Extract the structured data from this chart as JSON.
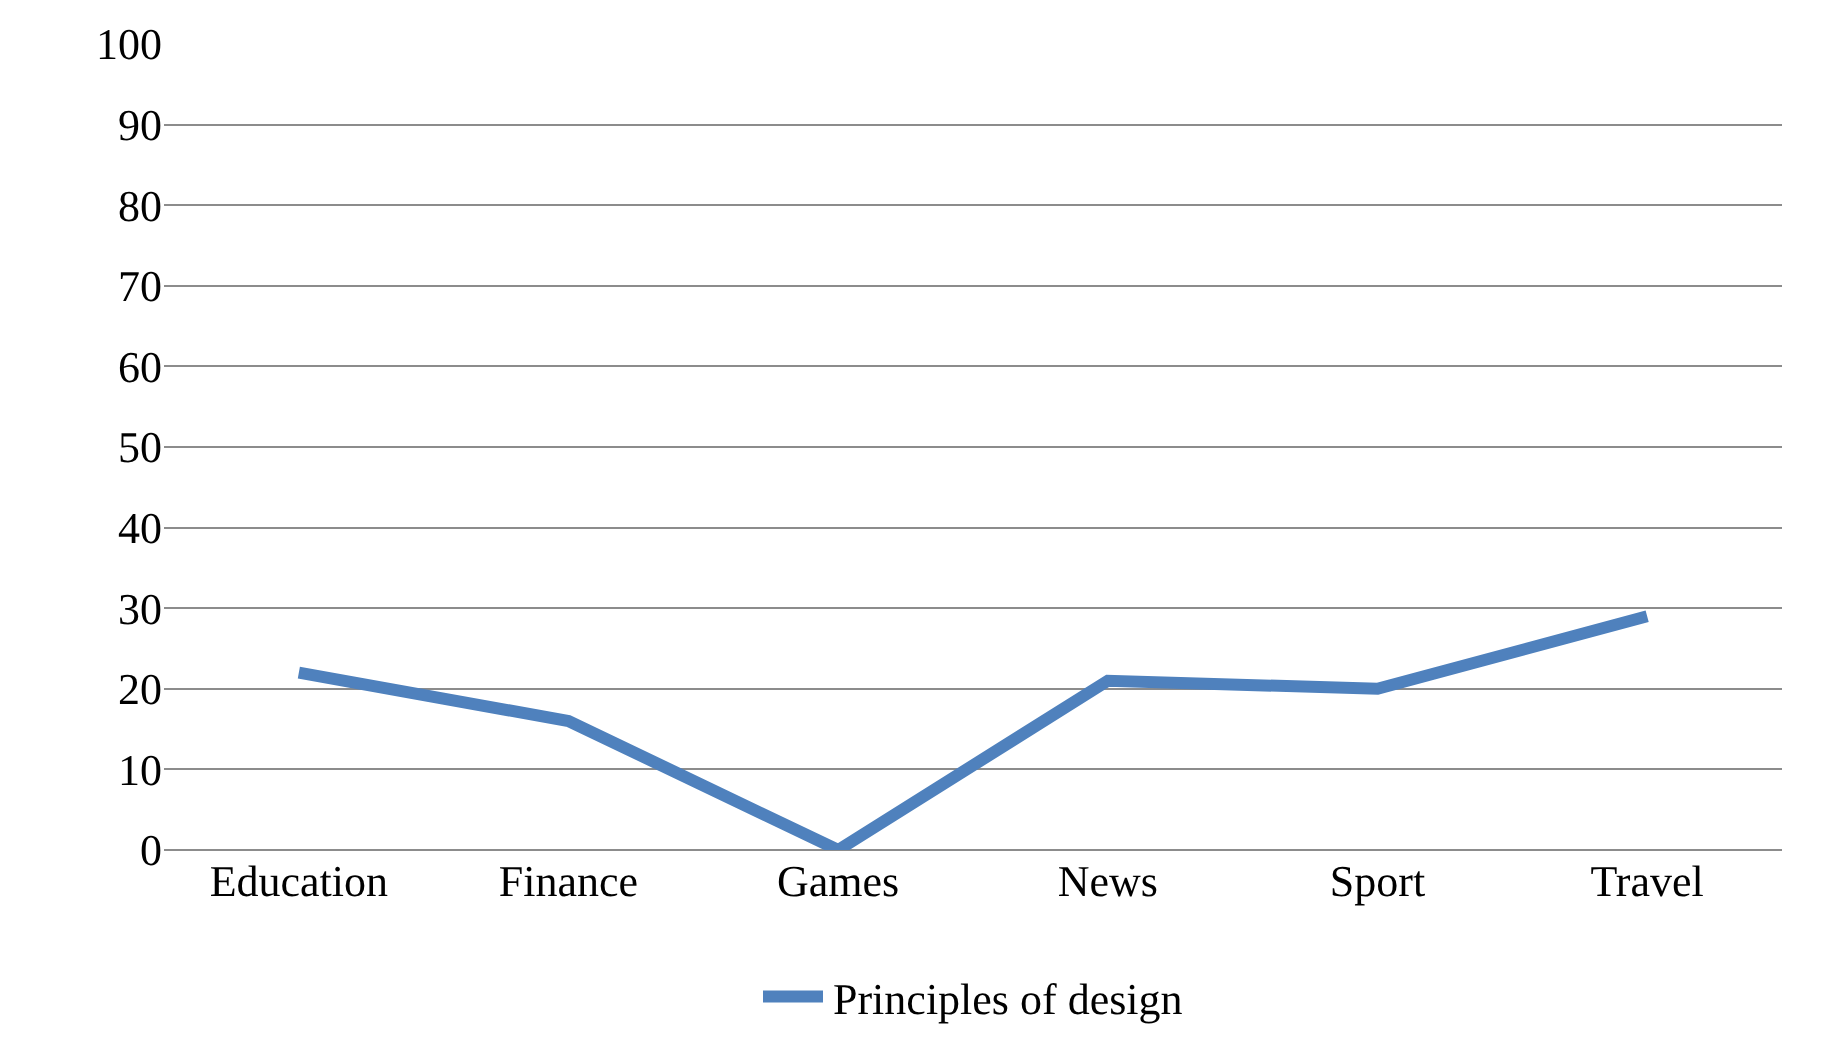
{
  "chart_data": {
    "type": "line",
    "categories": [
      "Education",
      "Finance",
      "Games",
      "News",
      "Sport",
      "Travel"
    ],
    "series": [
      {
        "name": "Principles of design",
        "color": "#4f81bd",
        "values": [
          22,
          16,
          0,
          21,
          20,
          29
        ]
      }
    ],
    "ylim": [
      0,
      100
    ],
    "yticks": [
      0,
      10,
      20,
      30,
      40,
      50,
      60,
      70,
      80,
      90,
      100
    ],
    "grid": "y",
    "legend": "bottom",
    "marker": "none",
    "line_style": "solid"
  }
}
